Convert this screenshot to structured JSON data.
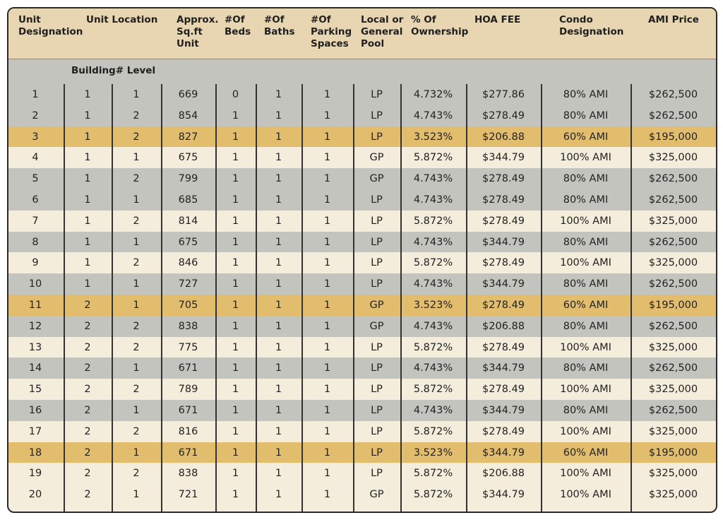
{
  "table": {
    "headers": [
      "Unit\nDesignation",
      "Unit Location",
      "Approx.\nSq.ft\nUnit",
      "#Of\nBeds",
      "#Of\nBaths",
      "#Of\nParking\nSpaces",
      "Local or\nGeneral\nPool",
      "% Of\nOwnership",
      "HOA FEE",
      "Condo\nDesignation",
      "AMI Price"
    ],
    "subheader": "Building# Level",
    "rows": [
      [
        "1",
        "1",
        "1",
        "669",
        "0",
        "1",
        "1",
        "LP",
        "4.732%",
        "$277.86",
        "80% AMI",
        "$262,500"
      ],
      [
        "2",
        "1",
        "2",
        "854",
        "1",
        "1",
        "1",
        "LP",
        "4.743%",
        "$278.49",
        "80% AMI",
        "$262,500"
      ],
      [
        "3",
        "1",
        "2",
        "827",
        "1",
        "1",
        "1",
        "LP",
        "3.523%",
        "$206.88",
        "60% AMI",
        "$195,000"
      ],
      [
        "4",
        "1",
        "1",
        "675",
        "1",
        "1",
        "1",
        "GP",
        "5.872%",
        "$344.79",
        "100% AMI",
        "$325,000"
      ],
      [
        "5",
        "1",
        "2",
        "799",
        "1",
        "1",
        "1",
        "GP",
        "4.743%",
        "$278.49",
        "80% AMI",
        "$262,500"
      ],
      [
        "6",
        "1",
        "1",
        "685",
        "1",
        "1",
        "1",
        "LP",
        "4.743%",
        "$278.49",
        "80% AMI",
        "$262,500"
      ],
      [
        "7",
        "1",
        "2",
        "814",
        "1",
        "1",
        "1",
        "LP",
        "5.872%",
        "$278.49",
        "100% AMI",
        "$325,000"
      ],
      [
        "8",
        "1",
        "1",
        "675",
        "1",
        "1",
        "1",
        "LP",
        "4.743%",
        "$344.79",
        "80% AMI",
        "$262,500"
      ],
      [
        "9",
        "1",
        "2",
        "846",
        "1",
        "1",
        "1",
        "LP",
        "5.872%",
        "$278.49",
        "100% AMI",
        "$325,000"
      ],
      [
        "10",
        "1",
        "1",
        "727",
        "1",
        "1",
        "1",
        "LP",
        "4.743%",
        "$344.79",
        "80% AMI",
        "$262,500"
      ],
      [
        "11",
        "2",
        "1",
        "705",
        "1",
        "1",
        "1",
        "GP",
        "3.523%",
        "$278.49",
        "60% AMI",
        "$195,000"
      ],
      [
        "12",
        "2",
        "2",
        "838",
        "1",
        "1",
        "1",
        "GP",
        "4.743%",
        "$206.88",
        "80% AMI",
        "$262,500"
      ],
      [
        "13",
        "2",
        "2",
        "775",
        "1",
        "1",
        "1",
        "LP",
        "5.872%",
        "$278.49",
        "100% AMI",
        "$325,000"
      ],
      [
        "14",
        "2",
        "1",
        "671",
        "1",
        "1",
        "1",
        "LP",
        "4.743%",
        "$344.79",
        "80% AMI",
        "$262,500"
      ],
      [
        "15",
        "2",
        "2",
        "789",
        "1",
        "1",
        "1",
        "LP",
        "5.872%",
        "$278.49",
        "100% AMI",
        "$325,000"
      ],
      [
        "16",
        "2",
        "1",
        "671",
        "1",
        "1",
        "1",
        "LP",
        "4.743%",
        "$344.79",
        "80% AMI",
        "$262,500"
      ],
      [
        "17",
        "2",
        "2",
        "816",
        "1",
        "1",
        "1",
        "LP",
        "5.872%",
        "$278.49",
        "100% AMI",
        "$325,000"
      ],
      [
        "18",
        "2",
        "1",
        "671",
        "1",
        "1",
        "1",
        "LP",
        "3.523%",
        "$344.79",
        "60% AMI",
        "$195,000"
      ],
      [
        "19",
        "2",
        "2",
        "838",
        "1",
        "1",
        "1",
        "LP",
        "5.872%",
        "$206.88",
        "100% AMI",
        "$325,000"
      ],
      [
        "20",
        "2",
        "1",
        "721",
        "1",
        "1",
        "1",
        "GP",
        "5.872%",
        "$344.79",
        "100% AMI",
        "$325,000"
      ]
    ],
    "row_colors": [
      "#c3c4bd",
      "#c3c4bd",
      "#e3bd6e",
      "#f4eddb",
      "#c3c4bd",
      "#c3c4bd",
      "#f4eddb",
      "#c3c4bd",
      "#f4eddb",
      "#c3c4bd",
      "#e3bd6e",
      "#c3c4bd",
      "#f4eddb",
      "#c3c4bd",
      "#f4eddb",
      "#c3c4bd",
      "#f4eddb",
      "#e3bd6e",
      "#f4eddb",
      "#f4eddb"
    ]
  }
}
